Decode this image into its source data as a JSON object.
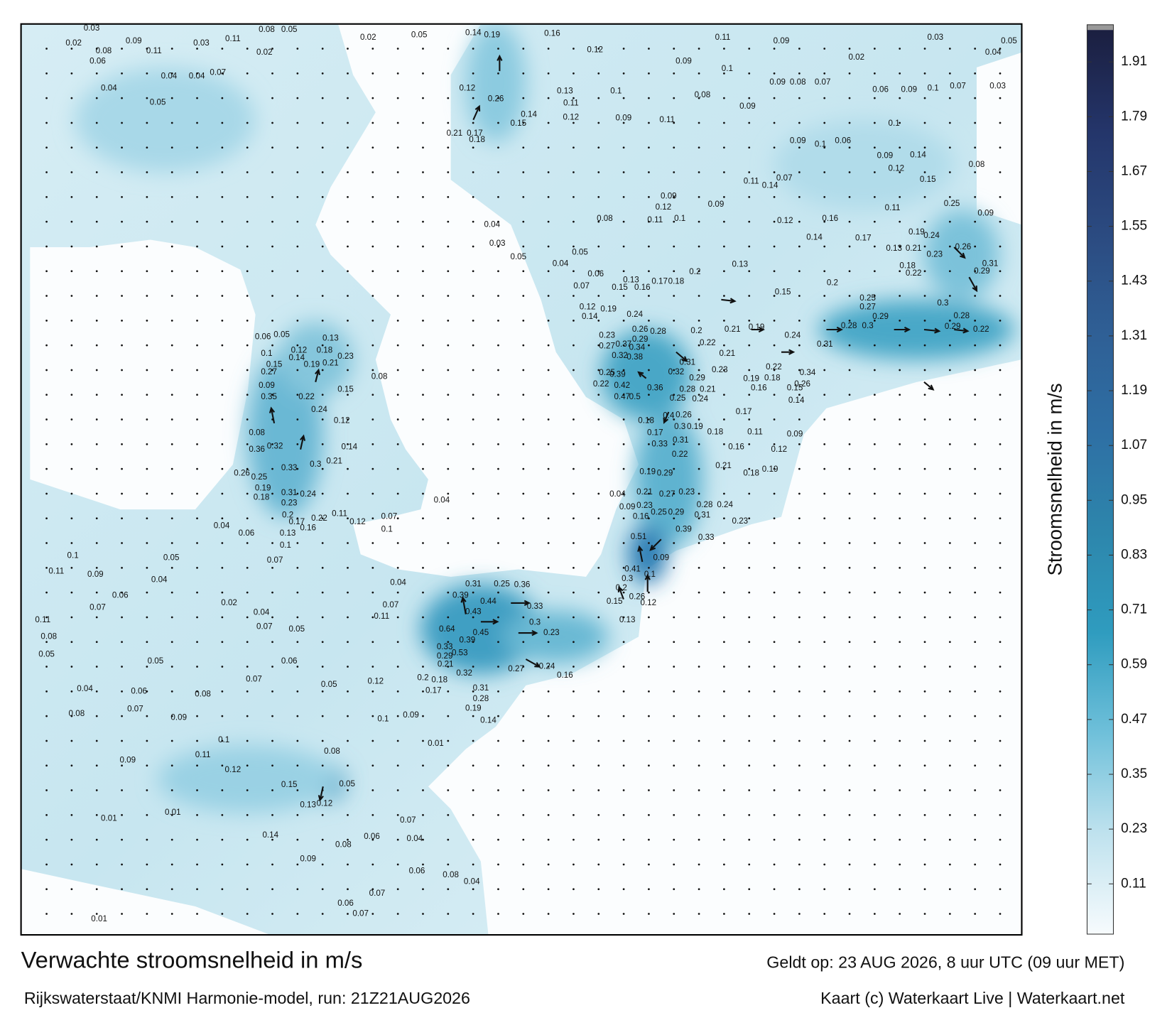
{
  "title": "Verwachte stroomsnelheid in m/s",
  "subtitle": "Rijkswaterstaat/KNMI Harmonie-model, run: 21Z21AUG2026",
  "valid": "Geldt op: 23 AUG 2026, 8 uur UTC (09 uur MET)",
  "credit": "Kaart (c) Waterkaart Live | Waterkaart.net",
  "colorbar": {
    "label": "Stroomsnelheid in m/s",
    "lim": [
      0,
      1.98
    ],
    "ticks": [
      0.11,
      0.23,
      0.35,
      0.47,
      0.59,
      0.71,
      0.83,
      0.95,
      1.07,
      1.19,
      1.31,
      1.43,
      1.55,
      1.67,
      1.79,
      1.91
    ],
    "colors": [
      "#f7fbfd",
      "#bfe2ee",
      "#6fc0da",
      "#2f9cbf",
      "#2d86ac",
      "#2e6fa4",
      "#2f5f95",
      "#2b4a80",
      "#24356a",
      "#1b1f40"
    ]
  },
  "map_labels": [
    0.03,
    0.02,
    0.09,
    0.08,
    0.11,
    0.06,
    0.03,
    0.11,
    0.08,
    0.05,
    0.02,
    0.02,
    0.05,
    0.14,
    0.19,
    0.16,
    0.11,
    0.09,
    0.03,
    0.05,
    0.04,
    0.12,
    0.09,
    0.1,
    0.02,
    0.09,
    0.08,
    0.07,
    0.06,
    0.09,
    0.1,
    0.07,
    0.03,
    0.04,
    0.04,
    0.04,
    0.07,
    0.05,
    0.12,
    0.26,
    0.13,
    0.11,
    0.12,
    0.1,
    0.08,
    0.09,
    0.09,
    0.11,
    0.14,
    0.15,
    0.17,
    0.21,
    0.18,
    0.1,
    0.09,
    0.1,
    0.06,
    0.14,
    0.09,
    0.12,
    0.15,
    0.08,
    0.25,
    0.09,
    0.11,
    0.19,
    0.24,
    0.26,
    0.13,
    0.21,
    0.23,
    0.18,
    0.22,
    0.31,
    0.29,
    0.2,
    0.15,
    0.13,
    0.09,
    0.12,
    0.09,
    0.11,
    0.07,
    0.14,
    0.16,
    0.14,
    0.12,
    0.17,
    0.08,
    0.11,
    0.1,
    0.04,
    0.03,
    0.05,
    0.04,
    0.05,
    0.06,
    0.07,
    0.15,
    0.16,
    0.13,
    0.17,
    0.18,
    0.2,
    0.19,
    0.12,
    0.14,
    0.24,
    0.26,
    0.28,
    0.2,
    0.22,
    0.21,
    0.19,
    0.24,
    0.31,
    0.28,
    0.3,
    0.29,
    0.25,
    0.27,
    0.3,
    0.28,
    0.29,
    0.22,
    0.23,
    0.27,
    0.29,
    0.34,
    0.32,
    0.38,
    0.37,
    0.25,
    0.39,
    0.42,
    0.22,
    0.47,
    0.5,
    0.36,
    0.32,
    0.31,
    0.29,
    0.28,
    0.21,
    0.25,
    0.24,
    0.23,
    0.21,
    0.19,
    0.22,
    0.18,
    0.15,
    0.16,
    0.34,
    0.26,
    0.14,
    0.17,
    0.18,
    0.17,
    0.4,
    0.26,
    0.3,
    0.19,
    0.18,
    0.31,
    0.33,
    0.22,
    0.11,
    0.09,
    0.16,
    0.21,
    0.18,
    0.12,
    0.19,
    0.19,
    0.29,
    0.21,
    0.27,
    0.23,
    0.28,
    0.04,
    0.09,
    0.23,
    0.16,
    0.25,
    0.29,
    0.51,
    0.09,
    0.39,
    0.31,
    0.24,
    0.33,
    0.23,
    0.06,
    0.05,
    0.13,
    0.12,
    0.1,
    0.15,
    0.27,
    0.14,
    0.19,
    0.18,
    0.23,
    0.21,
    0.08,
    0.09,
    0.22,
    0.35,
    0.15,
    0.24,
    0.12,
    0.08,
    0.36,
    0.32,
    0.33,
    0.3,
    0.21,
    0.14,
    0.26,
    0.25,
    0.19,
    0.18,
    0.31,
    0.24,
    0.23,
    0.2,
    0.17,
    0.16,
    0.22,
    0.11,
    0.12,
    0.13,
    0.1,
    0.07,
    0.07,
    0.1,
    0.04,
    0.04,
    0.06,
    0.05,
    0.1,
    0.11,
    0.09,
    0.04,
    0.06,
    0.07,
    0.11,
    0.08,
    0.05,
    0.05,
    0.04,
    0.06,
    0.07,
    0.08,
    0.09,
    0.08,
    0.02,
    0.04,
    0.07,
    0.05,
    0.07,
    0.11,
    0.04,
    0.06,
    0.07,
    0.05,
    0.12,
    0.2,
    0.18,
    0.21,
    0.33,
    0.29,
    0.64,
    0.43,
    0.45,
    0.39,
    0.53,
    0.32,
    0.31,
    0.28,
    0.17,
    0.19,
    0.14,
    0.09,
    0.1,
    0.39,
    0.44,
    0.31,
    0.25,
    0.36,
    0.33,
    0.3,
    0.23,
    0.27,
    0.24,
    0.16,
    0.41,
    0.2,
    0.3,
    0.15,
    0.26,
    0.1,
    0.12,
    0.13,
    0.11,
    0.12,
    0.1,
    0.09,
    0.15,
    0.13,
    0.12,
    0.08,
    0.05,
    0.07,
    0.04,
    0.06,
    0.08,
    0.14,
    0.09,
    0.07,
    0.06,
    0.08,
    0.04,
    0.01,
    0.01,
    0.01,
    0.07,
    0.06,
    0.01
  ]
}
